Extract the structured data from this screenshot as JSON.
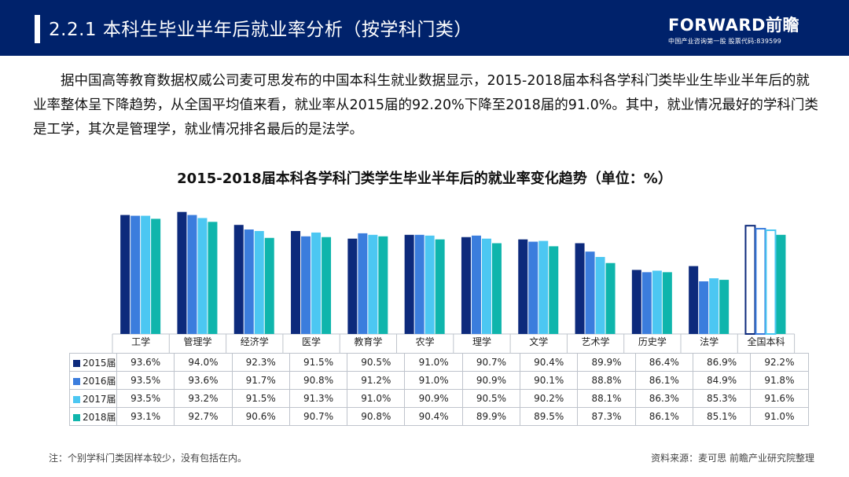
{
  "header": {
    "title": "2.2.1 本科生毕业半年后就业率分析（按学科门类）"
  },
  "logo": {
    "main": "FORWARD前瞻",
    "sub": "中国产业咨询第一股  股票代码:839599"
  },
  "paragraph": "据中国高等教育数据权威公司麦可思发布的中国本科生就业数据显示，2015-2018届本科各学科门类毕业生毕业半年后的就业率整体呈下降趋势，从全国平均值来看，就业率从2015届的92.20%下降至2018届的91.0%。其中，就业情况最好的学科门类是工学，其次是管理学，就业情况排名最后的是法学。",
  "chart_data": {
    "type": "bar",
    "title": "2015-2018届本科各学科门类学生毕业半年后的就业率变化趋势（单位：%）",
    "categories": [
      "工学",
      "管理学",
      "经济学",
      "医学",
      "教育学",
      "农学",
      "理学",
      "文学",
      "艺术学",
      "历史学",
      "法学",
      "全国本科"
    ],
    "series": [
      {
        "name": "2015届",
        "color": "#0d2a7c",
        "values": [
          93.6,
          94.0,
          92.3,
          91.5,
          90.5,
          91.0,
          90.7,
          90.4,
          89.9,
          86.4,
          86.9,
          92.2
        ],
        "labels": [
          "93.6%",
          "94.0%",
          "92.3%",
          "91.5%",
          "90.5%",
          "91.0%",
          "90.7%",
          "90.4%",
          "89.9%",
          "86.4%",
          "86.9%",
          "92.2%"
        ]
      },
      {
        "name": "2016届",
        "color": "#3b7ddd",
        "values": [
          93.5,
          93.6,
          91.7,
          90.8,
          91.2,
          91.0,
          90.9,
          90.1,
          88.8,
          86.1,
          84.9,
          91.8
        ],
        "labels": [
          "93.5%",
          "93.6%",
          "91.7%",
          "90.8%",
          "91.2%",
          "91.0%",
          "90.9%",
          "90.1%",
          "88.8%",
          "86.1%",
          "84.9%",
          "91.8%"
        ]
      },
      {
        "name": "2017届",
        "color": "#4cc7f2",
        "values": [
          93.5,
          93.2,
          91.5,
          91.3,
          91.0,
          90.9,
          90.5,
          90.2,
          88.1,
          86.3,
          85.3,
          91.6
        ],
        "labels": [
          "93.5%",
          "93.2%",
          "91.5%",
          "91.3%",
          "91.0%",
          "90.9%",
          "90.5%",
          "90.2%",
          "88.1%",
          "86.3%",
          "85.3%",
          "91.6%"
        ]
      },
      {
        "name": "2018届",
        "color": "#0fb5ac",
        "values": [
          93.1,
          92.7,
          90.6,
          90.7,
          90.8,
          90.4,
          89.9,
          89.5,
          87.3,
          86.1,
          85.1,
          91.0
        ],
        "labels": [
          "93.1%",
          "92.7%",
          "90.6%",
          "90.7%",
          "90.8%",
          "90.4%",
          "89.9%",
          "89.5%",
          "87.3%",
          "86.1%",
          "85.1%",
          "91.0%"
        ]
      }
    ],
    "highlight_category": "全国本科",
    "ylim": [
      78,
      95
    ]
  },
  "footer": {
    "note": "注：个别学科门类因样本较少，没有包括在内。",
    "source": "资料来源：麦可思  前瞻产业研究院整理"
  }
}
